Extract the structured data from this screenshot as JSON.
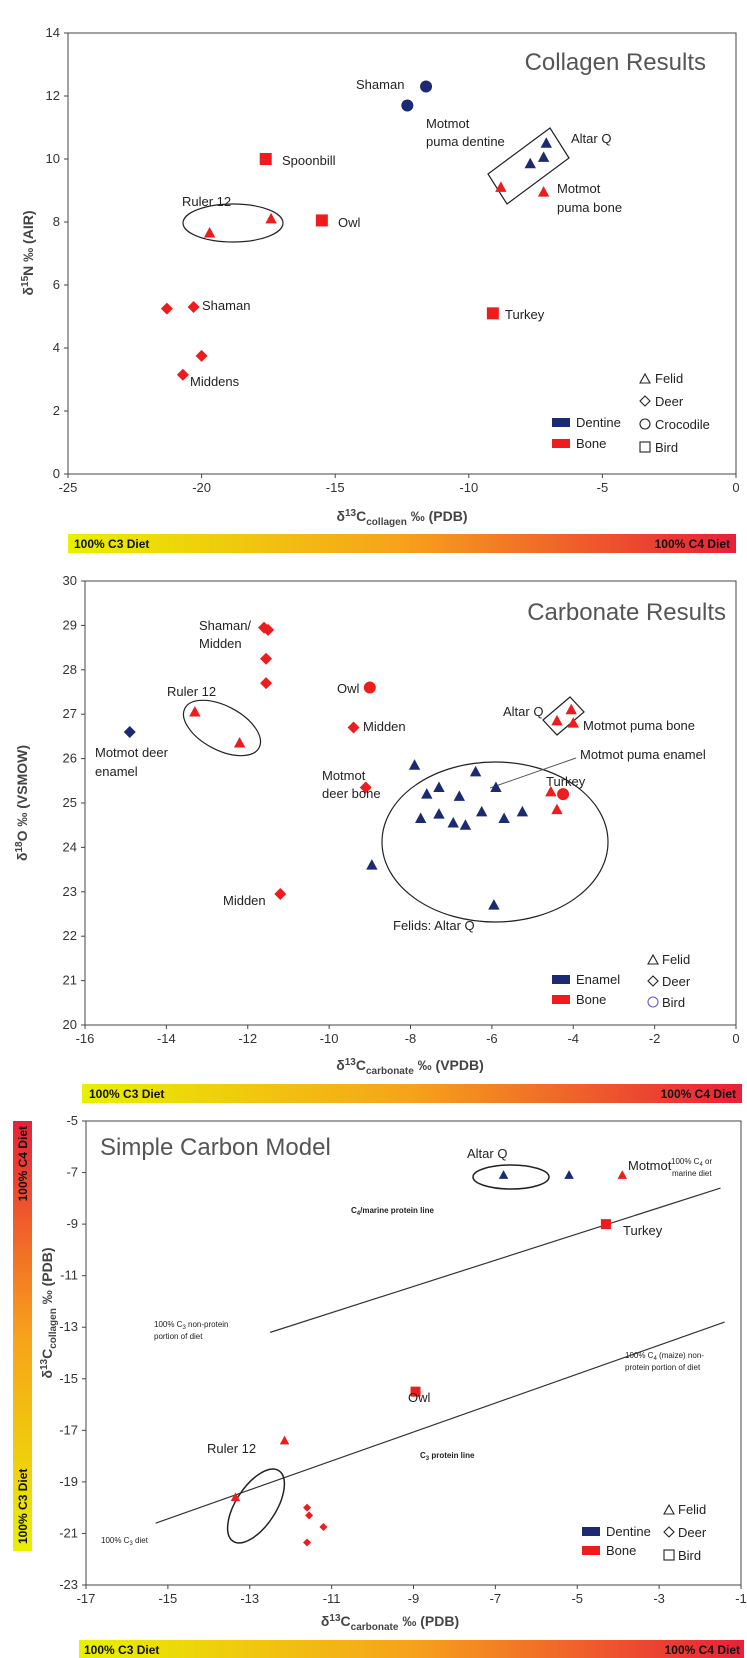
{
  "colors": {
    "dentine": "#1b2a72",
    "bone": "#ee1c1c",
    "bird_outline": "#6a5acd"
  },
  "gradient": {
    "left_label": "100% C3 Diet",
    "right_label": "100% C4 Diet",
    "from": "#e8f000",
    "mid": "#f7a21b",
    "to": "#e8203a"
  },
  "chart_data": [
    {
      "type": "scatter",
      "title": "Collagen Results",
      "xlabel": "δ13Ccollagen ‰ (PDB)",
      "ylabel": "δ15N ‰ (AIR)",
      "xlim": [
        -25,
        0
      ],
      "ylim": [
        0,
        14
      ],
      "xticks": [
        "-25",
        "-20",
        "-15",
        "-10",
        "-5",
        "0"
      ],
      "yticks": [
        "0",
        "2",
        "4",
        "6",
        "8",
        "10",
        "12",
        "14"
      ],
      "points": [
        {
          "x": -12.3,
          "y": 11.7,
          "group": "Dentine",
          "shape": "circle"
        },
        {
          "x": -11.6,
          "y": 12.3,
          "group": "Dentine",
          "shape": "circle"
        },
        {
          "x": -17.6,
          "y": 10.0,
          "group": "Bone",
          "shape": "square"
        },
        {
          "x": -15.5,
          "y": 8.05,
          "group": "Bone",
          "shape": "square"
        },
        {
          "x": -9.1,
          "y": 5.1,
          "group": "Bone",
          "shape": "square"
        },
        {
          "x": -19.7,
          "y": 7.65,
          "group": "Bone",
          "shape": "triangle"
        },
        {
          "x": -17.4,
          "y": 8.1,
          "group": "Bone",
          "shape": "triangle"
        },
        {
          "x": -8.8,
          "y": 9.1,
          "group": "Bone",
          "shape": "triangle"
        },
        {
          "x": -7.2,
          "y": 8.95,
          "group": "Bone",
          "shape": "triangle"
        },
        {
          "x": -7.7,
          "y": 9.85,
          "group": "Dentine",
          "shape": "triangle"
        },
        {
          "x": -7.2,
          "y": 10.05,
          "group": "Dentine",
          "shape": "triangle"
        },
        {
          "x": -7.1,
          "y": 10.5,
          "group": "Dentine",
          "shape": "triangle"
        },
        {
          "x": -21.3,
          "y": 5.25,
          "group": "Bone",
          "shape": "diamond"
        },
        {
          "x": -20.3,
          "y": 5.3,
          "group": "Bone",
          "shape": "diamond"
        },
        {
          "x": -20.0,
          "y": 3.75,
          "group": "Bone",
          "shape": "diamond"
        },
        {
          "x": -20.7,
          "y": 3.15,
          "group": "Bone",
          "shape": "diamond"
        }
      ],
      "annotations": [
        "Shaman",
        "Spoonbill",
        "Owl",
        "Ruler 12",
        "Shaman",
        "Middens",
        "Turkey",
        "Motmot puma dentine",
        "Altar Q",
        "Motmot puma bone"
      ],
      "legend": {
        "groups": [
          "Dentine",
          "Bone"
        ],
        "shapes": [
          "Felid",
          "Deer",
          "Crocodile",
          "Bird"
        ],
        "placement": "bottom-right"
      }
    },
    {
      "type": "scatter",
      "title": "Carbonate Results",
      "xlabel": "δ13Ccarbonate ‰ (VPDB)",
      "ylabel": "δ18O ‰ (VSMOW)",
      "xlim": [
        -16,
        0
      ],
      "ylim": [
        20,
        30
      ],
      "xticks": [
        "-16",
        "-14",
        "-12",
        "-10",
        "-8",
        "-6",
        "-4",
        "-2",
        "0"
      ],
      "yticks": [
        "20",
        "21",
        "22",
        "23",
        "24",
        "25",
        "26",
        "27",
        "28",
        "29",
        "30"
      ],
      "points": [
        {
          "x": -14.9,
          "y": 26.6,
          "group": "Enamel",
          "shape": "diamond"
        },
        {
          "x": -13.3,
          "y": 27.05,
          "group": "Bone",
          "shape": "triangle"
        },
        {
          "x": -12.2,
          "y": 26.35,
          "group": "Bone",
          "shape": "triangle"
        },
        {
          "x": -11.6,
          "y": 28.95,
          "group": "Bone",
          "shape": "diamond"
        },
        {
          "x": -11.5,
          "y": 28.9,
          "group": "Bone",
          "shape": "diamond"
        },
        {
          "x": -11.55,
          "y": 28.25,
          "group": "Bone",
          "shape": "diamond"
        },
        {
          "x": -11.55,
          "y": 27.7,
          "group": "Bone",
          "shape": "diamond"
        },
        {
          "x": -9.0,
          "y": 27.6,
          "group": "Bone",
          "shape": "circle"
        },
        {
          "x": -9.4,
          "y": 26.7,
          "group": "Bone",
          "shape": "diamond"
        },
        {
          "x": -9.1,
          "y": 25.35,
          "group": "Bone",
          "shape": "diamond"
        },
        {
          "x": -11.2,
          "y": 22.95,
          "group": "Bone",
          "shape": "diamond"
        },
        {
          "x": -4.4,
          "y": 26.85,
          "group": "Bone",
          "shape": "triangle"
        },
        {
          "x": -4.05,
          "y": 27.1,
          "group": "Bone",
          "shape": "triangle"
        },
        {
          "x": -4.0,
          "y": 26.8,
          "group": "Bone",
          "shape": "triangle"
        },
        {
          "x": -4.55,
          "y": 25.25,
          "group": "Bone",
          "shape": "triangle"
        },
        {
          "x": -4.4,
          "y": 24.85,
          "group": "Bone",
          "shape": "triangle"
        },
        {
          "x": -4.25,
          "y": 25.2,
          "group": "Bone",
          "shape": "circle"
        },
        {
          "x": -7.9,
          "y": 25.85,
          "group": "Enamel",
          "shape": "triangle"
        },
        {
          "x": -7.6,
          "y": 25.2,
          "group": "Enamel",
          "shape": "triangle"
        },
        {
          "x": -7.3,
          "y": 25.35,
          "group": "Enamel",
          "shape": "triangle"
        },
        {
          "x": -6.8,
          "y": 25.15,
          "group": "Enamel",
          "shape": "triangle"
        },
        {
          "x": -6.4,
          "y": 25.7,
          "group": "Enamel",
          "shape": "triangle"
        },
        {
          "x": -5.9,
          "y": 25.35,
          "group": "Enamel",
          "shape": "triangle"
        },
        {
          "x": -7.75,
          "y": 24.65,
          "group": "Enamel",
          "shape": "triangle"
        },
        {
          "x": -7.3,
          "y": 24.75,
          "group": "Enamel",
          "shape": "triangle"
        },
        {
          "x": -6.95,
          "y": 24.55,
          "group": "Enamel",
          "shape": "triangle"
        },
        {
          "x": -6.65,
          "y": 24.5,
          "group": "Enamel",
          "shape": "triangle"
        },
        {
          "x": -6.25,
          "y": 24.8,
          "group": "Enamel",
          "shape": "triangle"
        },
        {
          "x": -5.7,
          "y": 24.65,
          "group": "Enamel",
          "shape": "triangle"
        },
        {
          "x": -5.25,
          "y": 24.8,
          "group": "Enamel",
          "shape": "triangle"
        },
        {
          "x": -8.95,
          "y": 23.6,
          "group": "Enamel",
          "shape": "triangle"
        },
        {
          "x": -5.95,
          "y": 22.7,
          "group": "Enamel",
          "shape": "triangle"
        }
      ],
      "annotations": [
        "Shaman/",
        "Midden",
        "Ruler 12",
        "Owl",
        "Midden",
        "Motmot deer",
        "enamel",
        "Altar Q",
        "Motmot puma bone",
        "Motmot puma enamel",
        "Motmot",
        "deer bone",
        "Turkey",
        "Midden",
        "Felids: Altar Q"
      ],
      "legend": {
        "groups": [
          "Enamel",
          "Bone"
        ],
        "shapes": [
          "Felid",
          "Deer",
          "Bird"
        ],
        "placement": "bottom-right"
      }
    },
    {
      "type": "scatter",
      "title": "Simple Carbon Model",
      "xlabel": "δ13Ccarbonate ‰ (PDB)",
      "ylabel": "δ13Ccollagen ‰ (PDB)",
      "xlim": [
        -17,
        -1
      ],
      "ylim": [
        -23,
        -5
      ],
      "xticks": [
        "-17",
        "-15",
        "-13",
        "-11",
        "-9",
        "-7",
        "-5",
        "-3",
        "-1"
      ],
      "yticks": [
        "-23",
        "-21",
        "-19",
        "-17",
        "-15",
        "-13",
        "-11",
        "-9",
        "-7",
        "-5"
      ],
      "lines": [
        {
          "name": "C4/marine protein line",
          "from": [
            -12.5,
            -13.2
          ],
          "to": [
            -1.5,
            -7.6
          ]
        },
        {
          "name": "C3 protein line",
          "from": [
            -15.3,
            -20.6
          ],
          "to": [
            -1.4,
            -12.8
          ]
        }
      ],
      "points": [
        {
          "x": -6.8,
          "y": -7.1,
          "group": "Dentine",
          "shape": "triangle"
        },
        {
          "x": -5.2,
          "y": -7.1,
          "group": "Dentine",
          "shape": "triangle"
        },
        {
          "x": -3.9,
          "y": -7.1,
          "group": "Bone",
          "shape": "triangle"
        },
        {
          "x": -4.3,
          "y": -9.0,
          "group": "Bone",
          "shape": "square"
        },
        {
          "x": -8.95,
          "y": -15.5,
          "group": "Bone",
          "shape": "square"
        },
        {
          "x": -12.15,
          "y": -17.4,
          "group": "Bone",
          "shape": "triangle"
        },
        {
          "x": -13.35,
          "y": -19.6,
          "group": "Bone",
          "shape": "triangle"
        },
        {
          "x": -11.6,
          "y": -20.0,
          "group": "Bone",
          "shape": "diamond"
        },
        {
          "x": -11.55,
          "y": -20.3,
          "group": "Bone",
          "shape": "diamond"
        },
        {
          "x": -11.2,
          "y": -20.75,
          "group": "Bone",
          "shape": "diamond"
        },
        {
          "x": -11.6,
          "y": -21.35,
          "group": "Bone",
          "shape": "diamond"
        }
      ],
      "annotations": [
        "Altar Q",
        "Motmot",
        "Turkey",
        "Owl",
        "Ruler 12",
        "C4/marine protein line",
        "C3 protein line",
        "100% C4 or",
        "marine diet",
        "100% C3 non-protein",
        "portion of diet",
        "100% C4 (maize) non-",
        "protein portion of diet",
        "100% C3 diet"
      ],
      "legend": {
        "groups": [
          "Dentine",
          "Bone"
        ],
        "shapes": [
          "Felid",
          "Deer",
          "Bird"
        ],
        "placement": "bottom-right"
      }
    }
  ],
  "labels": {
    "p1": {
      "title": "Collagen Results",
      "ylabel": "δ15N ‰ (AIR)",
      "xlabel_pre": "δ",
      "xlabel_sup": "13",
      "xlabel_c": "C",
      "xlabel_sub": "collagen",
      "xlabel_post": " ‰ (PDB)",
      "ylabel_pre": "δ",
      "ylabel_sup": "15",
      "ylabel_post": "N ‰ (AIR)",
      "shaman_top": "Shaman",
      "spoonbill": "Spoonbill",
      "owl": "Owl",
      "ruler12": "Ruler 12",
      "shaman_low": "Shaman",
      "middens": "Middens",
      "turkey": "Turkey",
      "motmot_dentine_1": "Motmot",
      "motmot_dentine_2": "puma dentine",
      "altarq": "Altar Q",
      "motmot_bone_1": "Motmot",
      "motmot_bone_2": "puma bone",
      "leg_dentine": "Dentine",
      "leg_bone": "Bone",
      "leg_felid": "Felid",
      "leg_deer": "Deer",
      "leg_croc": "Crocodile",
      "leg_bird": "Bird"
    },
    "p2": {
      "title": "Carbonate Results",
      "xlabel_pre": "δ",
      "xlabel_sup": "13",
      "xlabel_c": "C",
      "xlabel_sub": "carbonate",
      "xlabel_post": " ‰ (VPDB)",
      "ylabel_pre": "δ",
      "ylabel_sup": "18",
      "ylabel_post": "O ‰ (VSMOW)",
      "shaman_midden_1": "Shaman/",
      "shaman_midden_2": "Midden",
      "ruler12": "Ruler 12",
      "owl": "Owl",
      "midden_mid": "Midden",
      "motmot_deer_enamel_1": "Motmot deer",
      "motmot_deer_enamel_2": "enamel",
      "altarq": "Altar Q",
      "motmot_puma_bone": "Motmot puma bone",
      "motmot_puma_enamel": "Motmot puma enamel",
      "motmot_deer_bone_1": "Motmot",
      "motmot_deer_bone_2": "deer bone",
      "turkey": "Turkey",
      "midden_low": "Midden",
      "felids": "Felids: Altar Q",
      "leg_enamel": "Enamel",
      "leg_bone": "Bone",
      "leg_felid": "Felid",
      "leg_deer": "Deer",
      "leg_bird": "Bird"
    },
    "p3": {
      "title": "Simple Carbon Model",
      "xlabel_pre": "δ",
      "xlabel_sup": "13",
      "xlabel_c": "C",
      "xlabel_sub": "carbonate",
      "xlabel_post": " ‰ (PDB)",
      "ylabel_pre": "δ",
      "ylabel_sup": "13",
      "ylabel_c": "C",
      "ylabel_sub": "collagen",
      "ylabel_post": " ‰ (PDB)",
      "altarq": "Altar Q",
      "motmot": "Motmot",
      "turkey": "Turkey",
      "owl": "Owl",
      "ruler12": "Ruler 12",
      "c4_line_label_a": "C",
      "c4_line_label_sub": "4",
      "c4_line_label_b": "/marine protein line",
      "c3_line_label_a": "C",
      "c3_line_label_sub": "3",
      "c3_line_label_b": " protein line",
      "note_c4_1a": "100% C",
      "note_c4_1sub": "4",
      "note_c4_1b": " or",
      "note_c4_2": "marine diet",
      "note_c3np_1a": "100% C",
      "note_c3np_1sub": "3",
      "note_c3np_1b": " non-protein",
      "note_c3np_2": "portion of diet",
      "note_c4m_1a": "100% C",
      "note_c4m_1sub": "4",
      "note_c4m_1b": " (maize) non-",
      "note_c4m_2": "protein portion of diet",
      "note_c3_a": "100% C",
      "note_c3_sub": "3",
      "note_c3_b": " diet",
      "leg_dentine": "Dentine",
      "leg_bone": "Bone",
      "leg_felid": "Felid",
      "leg_deer": "Deer",
      "leg_bird": "Bird"
    }
  }
}
